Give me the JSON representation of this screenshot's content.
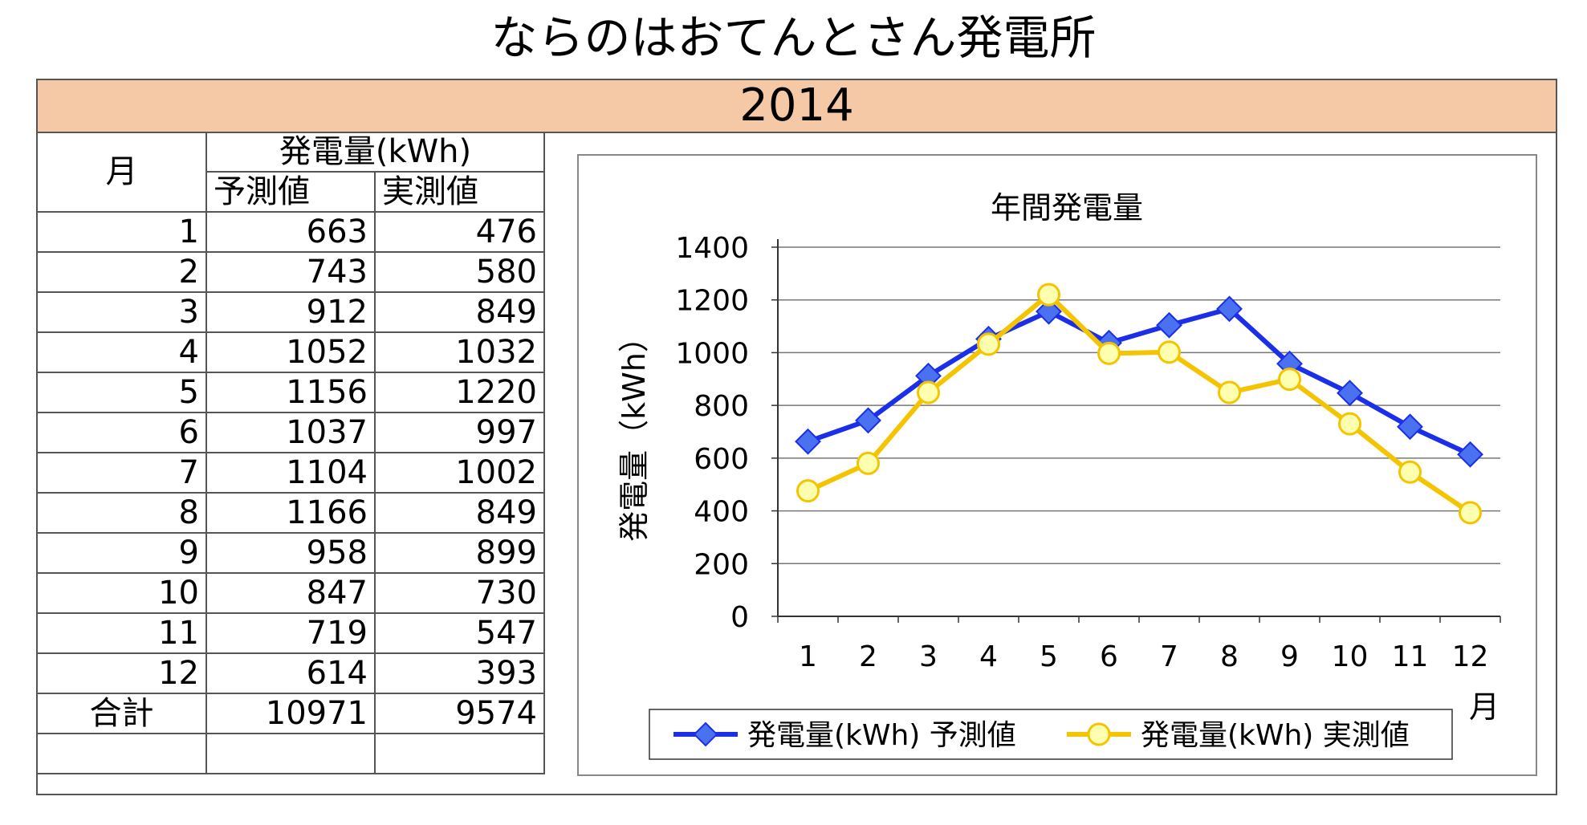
{
  "page": {
    "title": "ならのはおてんとさん発電所",
    "year": "2014"
  },
  "table": {
    "col_month": "月",
    "col_group": "発電量(kWh)",
    "col_pred": "予測値",
    "col_actual": "実測値",
    "rows": [
      {
        "month": "1",
        "pred": "663",
        "actual": "476"
      },
      {
        "month": "2",
        "pred": "743",
        "actual": "580"
      },
      {
        "month": "3",
        "pred": "912",
        "actual": "849"
      },
      {
        "month": "4",
        "pred": "1052",
        "actual": "1032"
      },
      {
        "month": "5",
        "pred": "1156",
        "actual": "1220"
      },
      {
        "month": "6",
        "pred": "1037",
        "actual": "997"
      },
      {
        "month": "7",
        "pred": "1104",
        "actual": "1002"
      },
      {
        "month": "8",
        "pred": "1166",
        "actual": "849"
      },
      {
        "month": "9",
        "pred": "958",
        "actual": "899"
      },
      {
        "month": "10",
        "pred": "847",
        "actual": "730"
      },
      {
        "month": "11",
        "pred": "719",
        "actual": "547"
      },
      {
        "month": "12",
        "pred": "614",
        "actual": "393"
      }
    ],
    "total_label": "合計",
    "total_pred": "10971",
    "total_actual": "9574"
  },
  "chart_data": {
    "type": "line",
    "title": "年間発電量",
    "xlabel": "月",
    "ylabel": "発電量（kWh）",
    "categories": [
      "1",
      "2",
      "3",
      "4",
      "5",
      "6",
      "7",
      "8",
      "9",
      "10",
      "11",
      "12"
    ],
    "ylim": [
      0,
      1400
    ],
    "yticks": [
      0,
      200,
      400,
      600,
      800,
      1000,
      1200,
      1400
    ],
    "grid": true,
    "legend_position": "bottom",
    "series": [
      {
        "name": "発電量(kWh) 予測値",
        "color": "#1b2ee8",
        "marker_color": "#4a72f0",
        "marker": "diamond",
        "values": [
          663,
          743,
          912,
          1052,
          1156,
          1037,
          1104,
          1166,
          958,
          847,
          719,
          614
        ]
      },
      {
        "name": "発電量(kWh) 実測値",
        "color": "#f5c400",
        "marker_color": "#ffffb0",
        "marker": "circle",
        "values": [
          476,
          580,
          849,
          1032,
          1220,
          997,
          1002,
          849,
          899,
          730,
          547,
          393
        ]
      }
    ]
  }
}
